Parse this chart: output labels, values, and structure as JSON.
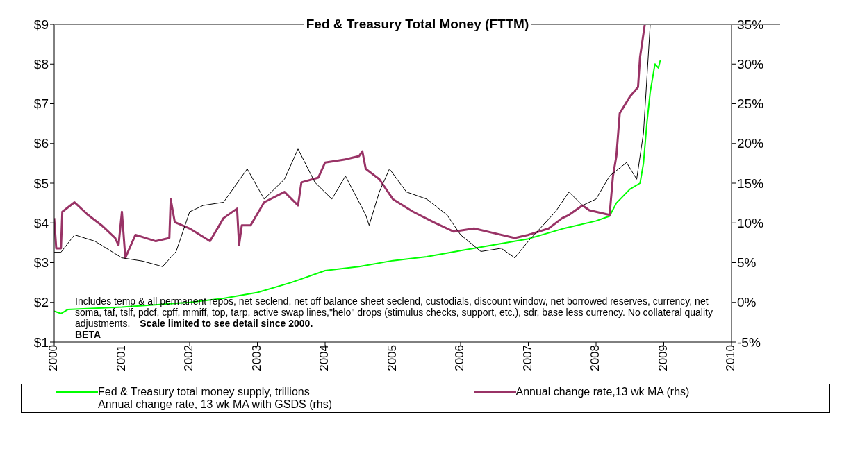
{
  "chart_data": {
    "type": "line",
    "title": "Fed & Treasury Total Money (FTTM)",
    "xlim": [
      2000,
      2010
    ],
    "xticks": [
      2000,
      2001,
      2002,
      2003,
      2004,
      2005,
      2006,
      2007,
      2008,
      2009,
      2010
    ],
    "ylim": [
      1,
      9
    ],
    "yticks": [
      {
        "value": 1,
        "label": "$1"
      },
      {
        "value": 2,
        "label": "$2"
      },
      {
        "value": 3,
        "label": "$3"
      },
      {
        "value": 4,
        "label": "$4"
      },
      {
        "value": 5,
        "label": "$5"
      },
      {
        "value": 6,
        "label": "$6"
      },
      {
        "value": 7,
        "label": "$7"
      },
      {
        "value": 8,
        "label": "$8"
      },
      {
        "value": 9,
        "label": "$9"
      }
    ],
    "y2lim": [
      -5,
      35
    ],
    "y2ticks": [
      {
        "value": -5,
        "label": "-5%"
      },
      {
        "value": 0,
        "label": "0%"
      },
      {
        "value": 5,
        "label": "5%"
      },
      {
        "value": 10,
        "label": "10%"
      },
      {
        "value": 15,
        "label": "15%"
      },
      {
        "value": 20,
        "label": "20%"
      },
      {
        "value": 25,
        "label": "25%"
      },
      {
        "value": 30,
        "label": "30%"
      },
      {
        "value": 35,
        "label": "35%"
      }
    ],
    "legend": "bottom",
    "marker": "none",
    "line_style": "solid",
    "series": [
      {
        "name": "Fed & Treasury total money supply, trillions",
        "color": "#00ff00",
        "x": [
          2000,
          2000.1,
          2000.2,
          2001,
          2002,
          2002.5,
          2003,
          2003.5,
          2004,
          2004.5,
          2005,
          2005.5,
          2006,
          2006.5,
          2007,
          2007.5,
          2008,
          2008.2,
          2008.3,
          2008.5,
          2008.65,
          2008.7,
          2008.75,
          2008.8,
          2008.87,
          2008.92,
          2008.95
        ],
        "values": [
          1.78,
          1.72,
          1.82,
          1.88,
          2.0,
          2.1,
          2.25,
          2.5,
          2.8,
          2.9,
          3.05,
          3.15,
          3.3,
          3.45,
          3.6,
          3.85,
          4.05,
          4.17,
          4.5,
          4.85,
          5.0,
          5.5,
          6.5,
          7.3,
          8.0,
          7.9,
          8.1
        ]
      },
      {
        "name": "Annual change rate,13 wk MA (rhs)",
        "color": "#993366",
        "axis": "y2",
        "x": [
          2000,
          2000.03,
          2000.1,
          2000.12,
          2000.3,
          2000.5,
          2000.7,
          2000.9,
          2000.95,
          2001.0,
          2001.05,
          2001.2,
          2001.5,
          2001.7,
          2001.72,
          2001.78,
          2002.0,
          2002.3,
          2002.5,
          2002.7,
          2002.73,
          2002.77,
          2002.9,
          2003.1,
          2003.4,
          2003.6,
          2003.65,
          2003.9,
          2004.0,
          2004.3,
          2004.5,
          2004.55,
          2004.6,
          2004.8,
          2005.0,
          2005.3,
          2005.6,
          2005.9,
          2006.2,
          2006.5,
          2006.8,
          2007.0,
          2007.3,
          2007.5,
          2007.6,
          2007.8,
          2007.9,
          2008.0,
          2008.2,
          2008.25,
          2008.3,
          2008.35,
          2008.5,
          2008.62,
          2008.65,
          2008.72
        ],
        "values": [
          10.6,
          6.8,
          6.8,
          11.4,
          12.6,
          11,
          9.7,
          8.1,
          7.2,
          11.4,
          5.6,
          8.5,
          7.7,
          8.1,
          13,
          10.1,
          9.3,
          7.7,
          10.6,
          11.8,
          7.2,
          9.7,
          9.7,
          12.6,
          13.9,
          12.2,
          15.1,
          15.7,
          17.6,
          18,
          18.4,
          19,
          16.8,
          15.5,
          13,
          11.4,
          10.1,
          8.9,
          9.3,
          8.7,
          8.1,
          8.5,
          9.3,
          10.6,
          11,
          12.2,
          11.6,
          11.4,
          11,
          15.9,
          18.4,
          23.8,
          25.9,
          27.1,
          30.9,
          35
        ]
      },
      {
        "name": "Annual change rate, 13 wk MA with GSDS (rhs)",
        "color": "#000000",
        "axis": "y2",
        "x": [
          2000,
          2000.1,
          2000.3,
          2000.6,
          2001.0,
          2001.3,
          2001.6,
          2001.8,
          2002.0,
          2002.2,
          2002.5,
          2002.85,
          2003.1,
          2003.4,
          2003.6,
          2003.85,
          2004.1,
          2004.3,
          2004.6,
          2004.65,
          2004.8,
          2004.95,
          2005.2,
          2005.5,
          2005.8,
          2006.0,
          2006.3,
          2006.6,
          2006.8,
          2007.0,
          2007.4,
          2007.6,
          2007.8,
          2008.0,
          2008.2,
          2008.45,
          2008.6,
          2008.7,
          2008.8
        ],
        "values": [
          6.3,
          6.3,
          8.5,
          7.7,
          5.6,
          5.2,
          4.5,
          6.4,
          11.4,
          12.2,
          12.6,
          16.8,
          13,
          15.5,
          19.3,
          15.1,
          13,
          15.9,
          11,
          9.7,
          13.9,
          16.8,
          13.9,
          13,
          11,
          8.5,
          6.4,
          6.8,
          5.6,
          7.7,
          11.4,
          13.9,
          12.2,
          13,
          15.9,
          17.6,
          15.5,
          21.3,
          35
        ]
      }
    ],
    "annotations": [
      "Includes temp & all permanent repos, net seclend, net off balance sheet seclend, custodials, discount window, net borrowed reserves, currency, net soma, taf, tslf, pdcf, cpff, mmiff, top, tarp, active swap lines,\"helo\" drops (stimulus checks, support, etc.), sdr, base less currency. No collateral quality adjustments.",
      "Scale limited to see detail since 2000.",
      "BETA"
    ]
  }
}
